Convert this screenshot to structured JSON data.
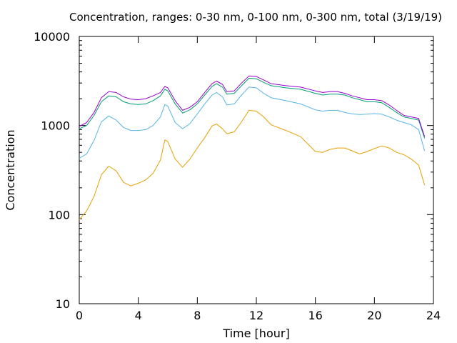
{
  "chart_data": {
    "type": "line",
    "title": "Concentration, ranges: 0-30 nm, 0-100 nm, 0-300 nm, total (3/19/19)",
    "xlabel": "Time [hour]",
    "ylabel": "Concentration",
    "xlim": [
      0,
      24
    ],
    "ylim": [
      10,
      10000
    ],
    "yscale": "log",
    "grid": false,
    "legend": "none",
    "x_ticks": [
      0,
      4,
      8,
      12,
      16,
      20,
      24
    ],
    "x_tick_labels": [
      "0",
      "4",
      "8",
      "12",
      "16",
      "20",
      "24"
    ],
    "y_ticks": [
      10,
      100,
      1000,
      10000
    ],
    "y_tick_labels": [
      "10",
      "100",
      "1000",
      "10000"
    ],
    "series": [
      {
        "color": "#e69f00",
        "x": [
          0,
          0.5,
          1,
          1.5,
          2,
          2.5,
          3,
          3.5,
          4,
          4.5,
          5,
          5.5,
          5.8,
          6,
          6.5,
          7,
          7.5,
          8,
          8.5,
          9,
          9.3,
          9.7,
          10,
          10.5,
          11,
          11.5,
          12,
          12.5,
          13,
          14,
          15,
          16,
          16.5,
          17,
          17.5,
          18,
          18.5,
          19,
          19.5,
          20,
          20.5,
          21,
          21.5,
          22,
          22.5,
          23,
          23.4
        ],
        "values": [
          88,
          110,
          160,
          280,
          350,
          310,
          230,
          210,
          225,
          245,
          290,
          410,
          690,
          660,
          420,
          340,
          420,
          560,
          730,
          990,
          1040,
          920,
          810,
          850,
          1100,
          1480,
          1450,
          1250,
          1020,
          880,
          750,
          510,
          500,
          540,
          560,
          560,
          520,
          480,
          510,
          550,
          590,
          560,
          500,
          470,
          420,
          360,
          215
        ]
      },
      {
        "color": "#56b4e9",
        "x": [
          0,
          0.5,
          1,
          1.5,
          2,
          2.5,
          3,
          3.5,
          4,
          4.5,
          5,
          5.5,
          5.8,
          6,
          6.5,
          7,
          7.5,
          8,
          8.5,
          9,
          9.3,
          9.7,
          10,
          10.5,
          11,
          11.5,
          12,
          12.5,
          13,
          14,
          15,
          16,
          16.5,
          17,
          17.5,
          18,
          18.5,
          19,
          19.5,
          20,
          20.5,
          21,
          21.5,
          22,
          22.5,
          23,
          23.4
        ],
        "values": [
          430,
          480,
          680,
          1100,
          1280,
          1150,
          950,
          880,
          880,
          900,
          1000,
          1250,
          1720,
          1650,
          1080,
          920,
          1050,
          1350,
          1750,
          2200,
          2350,
          2100,
          1700,
          1750,
          2200,
          2700,
          2650,
          2300,
          2050,
          1900,
          1750,
          1500,
          1450,
          1480,
          1480,
          1400,
          1350,
          1330,
          1340,
          1360,
          1340,
          1250,
          1150,
          1080,
          1020,
          900,
          520
        ]
      },
      {
        "color": "#009e73",
        "x": [
          0,
          0.5,
          1,
          1.5,
          2,
          2.5,
          3,
          3.5,
          4,
          4.5,
          5,
          5.5,
          5.8,
          6,
          6.5,
          7,
          7.5,
          8,
          8.5,
          9,
          9.3,
          9.7,
          10,
          10.5,
          11,
          11.5,
          12,
          12.5,
          13,
          14,
          15,
          16,
          16.5,
          17,
          17.5,
          18,
          18.5,
          19,
          19.5,
          20,
          20.5,
          21,
          21.5,
          22,
          22.5,
          23,
          23.4
        ],
        "values": [
          920,
          1000,
          1300,
          1850,
          2150,
          2100,
          1850,
          1750,
          1720,
          1750,
          1900,
          2150,
          2550,
          2450,
          1750,
          1380,
          1500,
          1750,
          2200,
          2750,
          2950,
          2700,
          2250,
          2300,
          2800,
          3400,
          3350,
          3050,
          2800,
          2650,
          2550,
          2300,
          2200,
          2250,
          2250,
          2200,
          2050,
          1950,
          1850,
          1850,
          1800,
          1600,
          1400,
          1250,
          1200,
          1150,
          720
        ]
      },
      {
        "color": "#9400d3",
        "x": [
          0,
          0.5,
          1,
          1.5,
          2,
          2.5,
          3,
          3.5,
          4,
          4.5,
          5,
          5.5,
          5.8,
          6,
          6.5,
          7,
          7.5,
          8,
          8.5,
          9,
          9.3,
          9.7,
          10,
          10.5,
          11,
          11.5,
          12,
          12.5,
          13,
          14,
          15,
          16,
          16.5,
          17,
          17.5,
          18,
          18.5,
          19,
          19.5,
          20,
          20.5,
          21,
          21.5,
          22,
          22.5,
          23,
          23.4
        ],
        "values": [
          980,
          1080,
          1400,
          2050,
          2400,
          2350,
          2100,
          1980,
          1950,
          2000,
          2150,
          2350,
          2750,
          2650,
          1900,
          1480,
          1600,
          1850,
          2350,
          2950,
          3150,
          2900,
          2400,
          2450,
          3000,
          3600,
          3550,
          3250,
          2950,
          2800,
          2700,
          2450,
          2350,
          2400,
          2400,
          2300,
          2150,
          2050,
          1950,
          1950,
          1900,
          1700,
          1480,
          1300,
          1250,
          1200,
          750
        ]
      }
    ]
  }
}
